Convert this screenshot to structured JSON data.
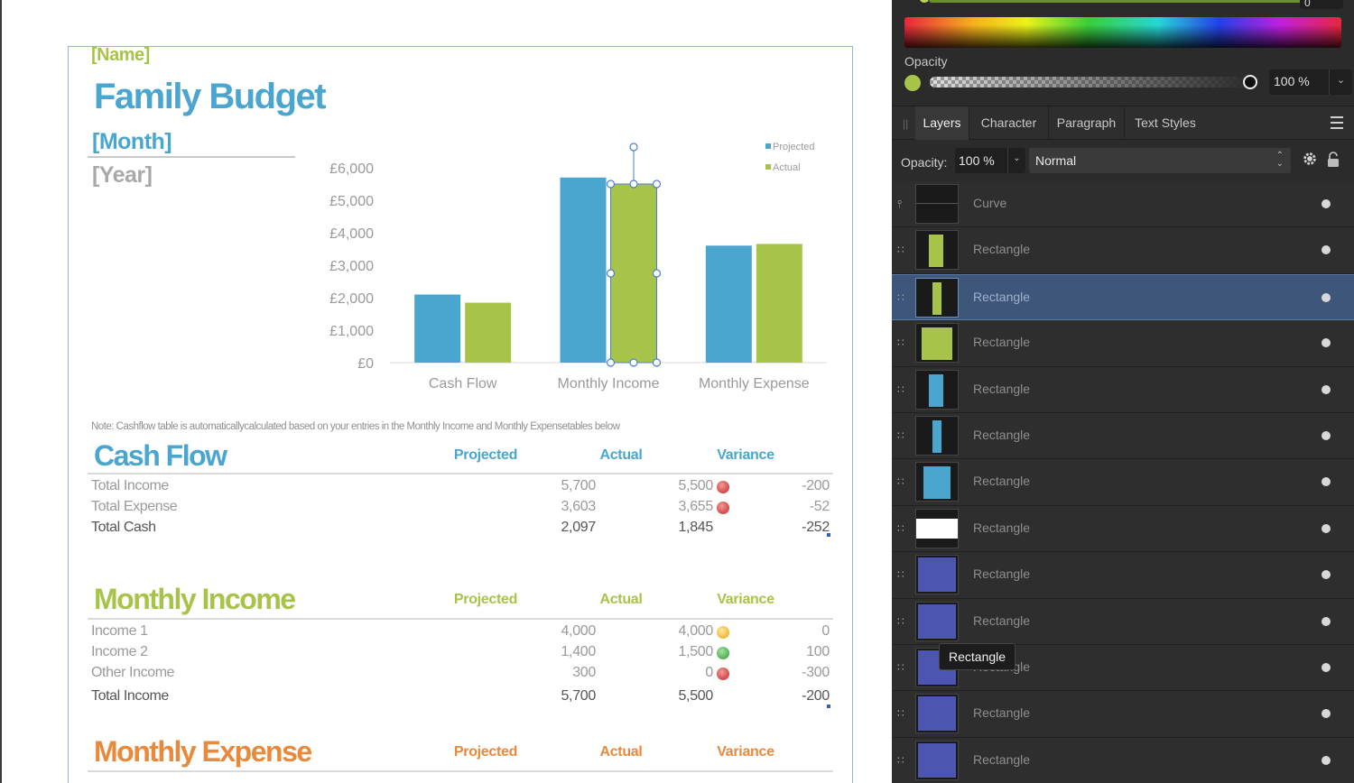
{
  "document": {
    "name": "[Name]",
    "title": "Family Budget",
    "month": "[Month]",
    "year": "[Year]",
    "note": "Note: Cashflow table is automaticallycalculated based on your entries in the Monthly Income and Monthly Expensetables below",
    "colors": {
      "blue": "#4aa6cf",
      "green": "#a8c34a",
      "orange": "#e8893b"
    }
  },
  "chart_data": {
    "type": "bar",
    "categories": [
      "Cash Flow",
      "Monthly Income",
      "Monthly  Expense"
    ],
    "series": [
      {
        "name": "Projected",
        "values": [
          2097,
          5700,
          3603
        ],
        "color": "#4aa6cf"
      },
      {
        "name": "Actual",
        "values": [
          1845,
          5500,
          3655
        ],
        "color": "#a8c34a"
      }
    ],
    "ytick_labels": [
      "£0",
      "£1,000",
      "£2,000",
      "£3,000",
      "£4,000",
      "£5,000",
      "£6,000"
    ],
    "ylim": [
      0,
      6000
    ],
    "legend": "top-right",
    "grid": false
  },
  "cash_flow": {
    "title": "Cash Flow",
    "headers": {
      "projected": "Projected",
      "actual": "Actual",
      "variance": "Variance"
    },
    "rows": [
      {
        "label": "Total Income",
        "projected": "5,700",
        "actual": "5,500",
        "status": "red",
        "variance": "-200"
      },
      {
        "label": "Total Expense",
        "projected": "3,603",
        "actual": "3,655",
        "status": "red",
        "variance": "-52"
      },
      {
        "label": "Total Cash",
        "projected": "2,097",
        "actual": "1,845",
        "status": "",
        "variance": "-252"
      }
    ]
  },
  "monthly_income": {
    "title": "Monthly  Income",
    "headers": {
      "projected": "Projected",
      "actual": "Actual",
      "variance": "Variance"
    },
    "rows": [
      {
        "label": "Income 1",
        "projected": "4,000",
        "actual": "4,000",
        "status": "yellow",
        "variance": "0"
      },
      {
        "label": "Income 2",
        "projected": "1,400",
        "actual": "1,500",
        "status": "green",
        "variance": "100"
      },
      {
        "label": "Other Income",
        "projected": "300",
        "actual": "0",
        "status": "red",
        "variance": "-300"
      },
      {
        "label": "Total Income",
        "projected": "5,700",
        "actual": "5,500",
        "status": "",
        "variance": "-200"
      }
    ]
  },
  "monthly_expense": {
    "title": "Monthly  Expense",
    "headers": {
      "projected": "Projected",
      "actual": "Actual",
      "variance": "Variance"
    }
  },
  "panel": {
    "color_field_value": "0",
    "opacity_label": "Opacity",
    "opacity_value": "100 %",
    "opacity_swatch_color": "#a8c34a",
    "tabs": [
      "Layers",
      "Character",
      "Paragraph",
      "Text Styles"
    ],
    "layer_opacity_label": "Opacity:",
    "layer_opacity_value": "100 %",
    "blend_mode": "Normal",
    "layers": [
      {
        "name": "Curve",
        "icon": "curve-icon",
        "thumb": "curve"
      },
      {
        "name": "Rectangle",
        "icon": "shape-icon",
        "thumb": "green-thin"
      },
      {
        "name": "Rectangle",
        "icon": "shape-icon",
        "thumb": "green-narrow",
        "selected": true
      },
      {
        "name": "Rectangle",
        "icon": "shape-icon",
        "thumb": "green-wide"
      },
      {
        "name": "Rectangle",
        "icon": "shape-icon",
        "thumb": "blue-thin"
      },
      {
        "name": "Rectangle",
        "icon": "shape-icon",
        "thumb": "blue-narrow"
      },
      {
        "name": "Rectangle",
        "icon": "shape-icon",
        "thumb": "blue-wide"
      },
      {
        "name": "Rectangle",
        "icon": "shape-icon",
        "thumb": "white"
      },
      {
        "name": "Rectangle",
        "icon": "shape-icon",
        "thumb": "indigo"
      },
      {
        "name": "Rectangle",
        "icon": "shape-icon",
        "thumb": "indigo"
      },
      {
        "name": "Rectangle",
        "icon": "shape-icon",
        "thumb": "indigo"
      },
      {
        "name": "Rectangle",
        "icon": "shape-icon",
        "thumb": "indigo"
      },
      {
        "name": "Rectangle",
        "icon": "shape-icon",
        "thumb": "indigo"
      }
    ],
    "tooltip": "Rectangle"
  }
}
